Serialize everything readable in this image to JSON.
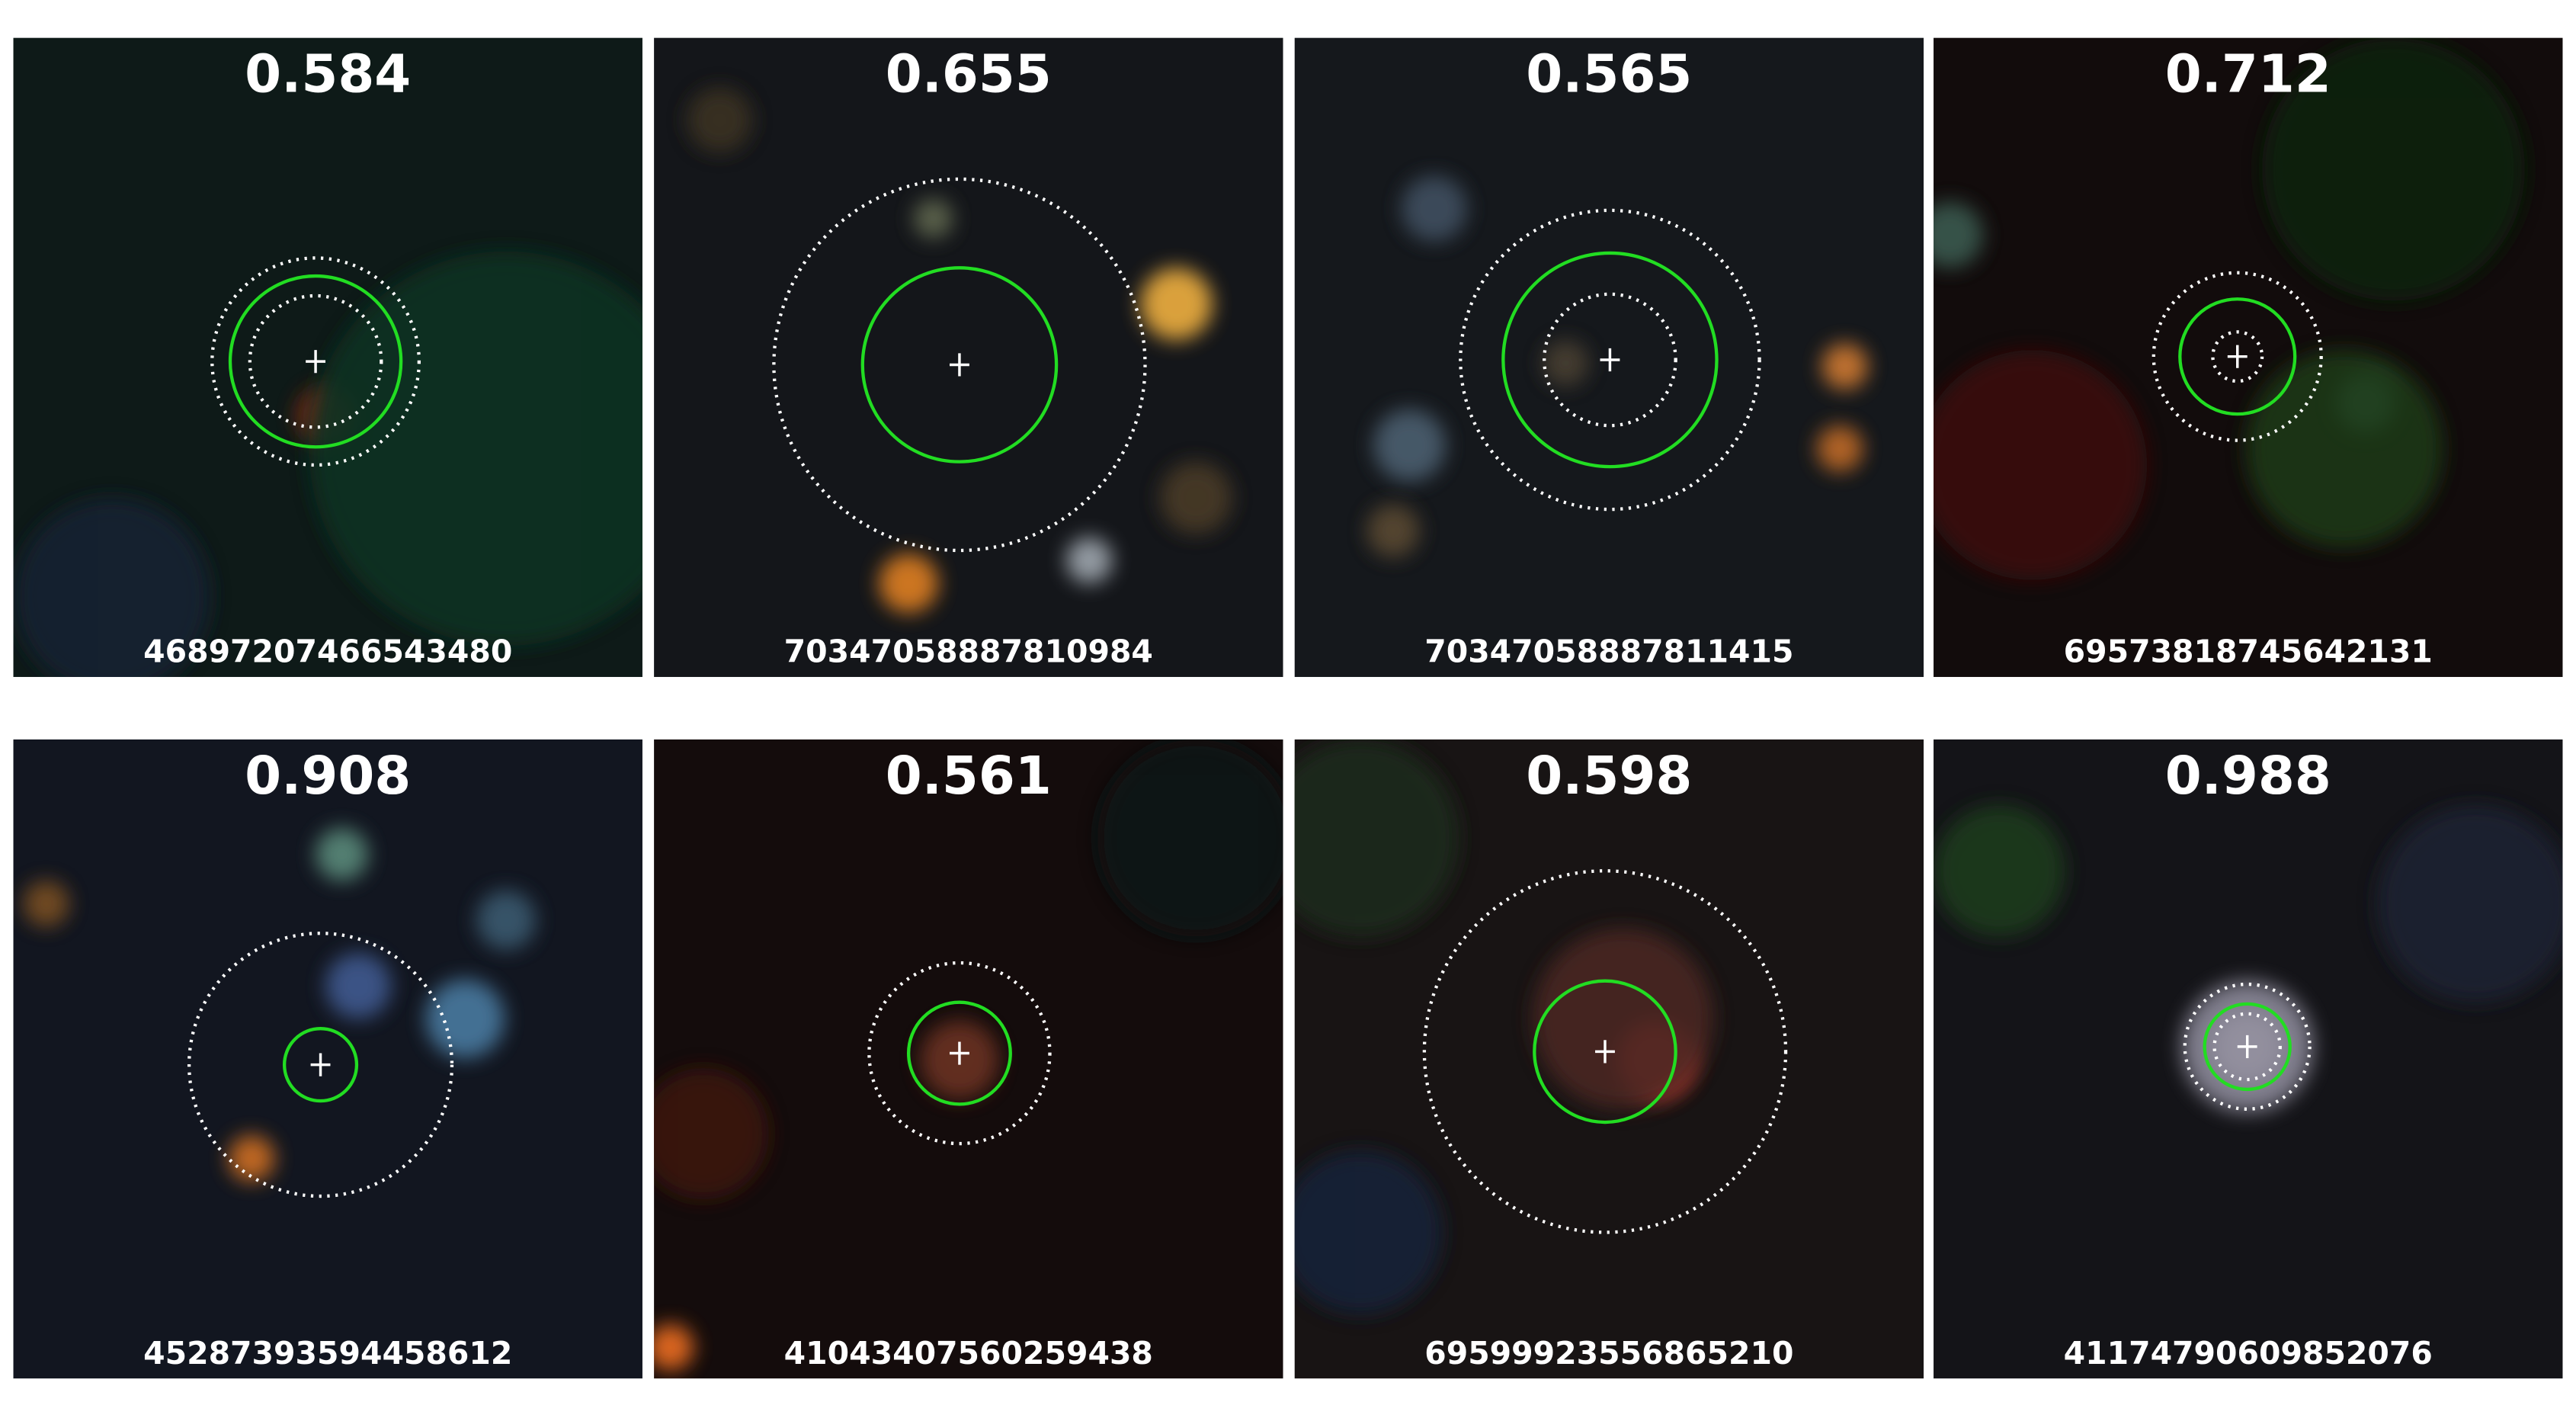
{
  "panels": [
    {
      "score": "0.584",
      "id": "46897207466543480"
    },
    {
      "score": "0.655",
      "id": "70347058887810984"
    },
    {
      "score": "0.565",
      "id": "70347058887811415"
    },
    {
      "score": "0.712",
      "id": "69573818745642131"
    },
    {
      "score": "0.908",
      "id": "45287393594458612"
    },
    {
      "score": "0.561",
      "id": "41043407560259438"
    },
    {
      "score": "0.598",
      "id": "69599923556865210"
    },
    {
      "score": "0.988",
      "id": "41174790609852076"
    }
  ]
}
